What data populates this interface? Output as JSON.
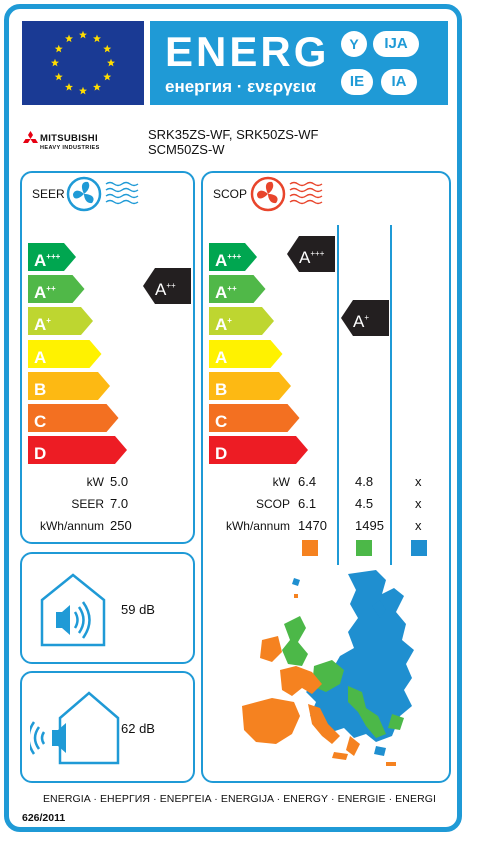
{
  "header": {
    "energy_word": "ENERG",
    "energy_subtitle": "енергия · ενεργεια",
    "lang_badges": [
      "Y",
      "IJA",
      "IE",
      "IA"
    ]
  },
  "brand": {
    "name": "MITSUBISHI",
    "subname": "HEAVY INDUSTRIES",
    "models_line1": "SRK35ZS-WF, SRK50ZS-WF",
    "models_line2": "SCM50ZS-W"
  },
  "scale": [
    {
      "letter": "A",
      "plus": "+++",
      "color": "#00a650"
    },
    {
      "letter": "A",
      "plus": "++",
      "color": "#50b848"
    },
    {
      "letter": "A",
      "plus": "+",
      "color": "#bed630"
    },
    {
      "letter": "A",
      "plus": "",
      "color": "#fff200"
    },
    {
      "letter": "B",
      "plus": "",
      "color": "#fdb913"
    },
    {
      "letter": "C",
      "plus": "",
      "color": "#f37021"
    },
    {
      "letter": "D",
      "plus": "",
      "color": "#ed1c24"
    }
  ],
  "cooling": {
    "heading": "SEER",
    "rating_letter": "A",
    "rating_plus": "++",
    "rows": [
      {
        "label": "kW",
        "value": "5.0"
      },
      {
        "label": "SEER",
        "value": "7.0"
      },
      {
        "label": "kWh/annum",
        "value": "250"
      }
    ]
  },
  "heating": {
    "heading": "SCOP",
    "ratings": [
      {
        "letter": "A",
        "plus": "+++",
        "zone": "warmer"
      },
      {
        "letter": "A",
        "plus": "+",
        "zone": "average"
      }
    ],
    "rows": [
      {
        "label": "kW",
        "values": [
          "6.4",
          "4.8",
          "x"
        ]
      },
      {
        "label": "SCOP",
        "values": [
          "6.1",
          "4.5",
          "x"
        ]
      },
      {
        "label": "kWh/annum",
        "values": [
          "1470",
          "1495",
          "x"
        ]
      }
    ],
    "zone_colors": [
      "#f58220",
      "#4cb848",
      "#1f8fd0"
    ]
  },
  "noise": {
    "indoor": "59 dB",
    "outdoor": "62 dB"
  },
  "footer": {
    "languages": "ENERGIA · ЕНЕРГИЯ · ΕΝΕΡΓΕΙΑ · ENERGIJA · ENERGY · ENERGIE · ENERGI",
    "regulation": "626/2011"
  },
  "colors": {
    "frame_blue": "#1f9ad6",
    "eu_blue": "#1a3a94",
    "star_yellow": "#ffdd00",
    "rating_black": "#231f20"
  }
}
